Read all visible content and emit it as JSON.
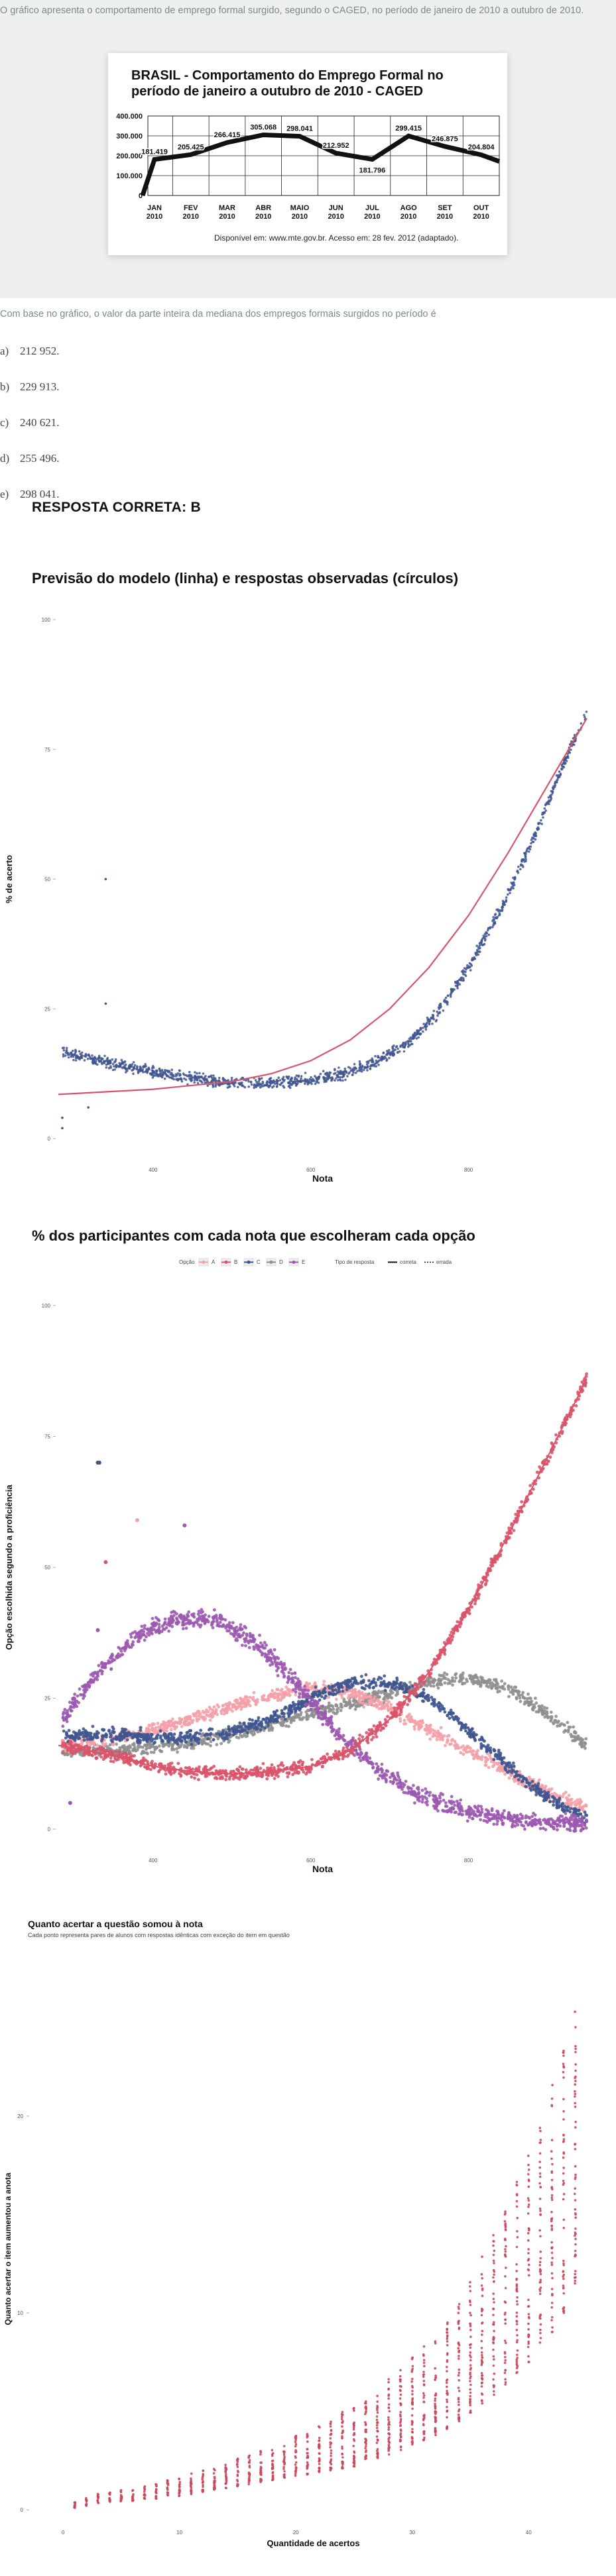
{
  "intro_text": "O gráfico apresenta o comportamento de emprego formal surgido, segundo o CAGED, no período de janeiro de 2010 a outubro de 2010.",
  "caged_chart": {
    "title_line1": "BRASIL - Comportamento do Emprego Formal no",
    "title_line2": "período de janeiro a outubro de 2010 - CAGED",
    "source": "Disponível em: www.mte.gov.br. Acesso em: 28 fev. 2012 (adaptado).",
    "y_ticks": [
      "400.000",
      "300.000",
      "200.000",
      "100.000",
      "0"
    ],
    "months": [
      "JAN",
      "FEV",
      "MAR",
      "ABR",
      "MAIO",
      "JUN",
      "JUL",
      "AGO",
      "SET",
      "OUT"
    ],
    "year": "2010",
    "value_labels": [
      "181.419",
      "205.425",
      "266.415",
      "305.068",
      "298.041",
      "212.952",
      "181.796",
      "299.415",
      "246.875",
      "204.804"
    ]
  },
  "chart_data": [
    {
      "type": "line",
      "title": "BRASIL - Comportamento do Emprego Formal no período de janeiro a outubro de 2010 - CAGED",
      "categories": [
        "JAN 2010",
        "FEV 2010",
        "MAR 2010",
        "ABR 2010",
        "MAIO 2010",
        "JUN 2010",
        "JUL 2010",
        "AGO 2010",
        "SET 2010",
        "OUT 2010"
      ],
      "values": [
        181419,
        205425,
        266415,
        305068,
        298041,
        212952,
        181796,
        299415,
        246875,
        204804
      ],
      "ylim": [
        0,
        400000
      ],
      "grid": true
    },
    {
      "type": "scatter",
      "title": "Previsão do modelo (linha) e respostas observadas (círculos)",
      "xlabel": "Nota",
      "ylabel": "% de acerto",
      "y_ticks": [
        "100",
        "75",
        "50",
        "25",
        "0"
      ],
      "x_ticks": [
        "400",
        "600",
        "800"
      ],
      "ylim": [
        0,
        100
      ],
      "xlim": [
        280,
        950
      ],
      "model_line": {
        "x": [
          280,
          400,
          500,
          550,
          600,
          650,
          700,
          750,
          800,
          850,
          900,
          950
        ],
        "y": [
          8.5,
          9.5,
          11,
          12.5,
          15,
          19,
          25,
          33,
          43,
          55,
          68,
          81
        ]
      },
      "observed_trend": {
        "x": [
          280,
          330,
          380,
          430,
          480,
          530,
          580,
          630,
          680,
          720,
          760,
          800,
          840,
          880,
          920,
          950
        ],
        "y": [
          17,
          15,
          13.5,
          12,
          11,
          10.5,
          11,
          12,
          14.5,
          18,
          24,
          33,
          44,
          57,
          72,
          82
        ]
      }
    },
    {
      "type": "scatter",
      "title": "% dos participantes com cada nota que escolheram cada opção",
      "xlabel": "Nota",
      "ylabel": "Opção escolhida segundo a proficiência",
      "y_ticks": [
        "100",
        "75",
        "50",
        "25",
        "0"
      ],
      "x_ticks": [
        "400",
        "600",
        "800"
      ],
      "ylim": [
        0,
        100
      ],
      "legend_position": "top",
      "legend_option_title": "Opção",
      "legend_type_title": "Tipo de resposta",
      "legend_type_items": [
        "correta",
        "errada"
      ],
      "series": [
        {
          "name": "A",
          "color": "#f4a0a8",
          "correct": false,
          "x": [
            280,
            350,
            400,
            450,
            500,
            550,
            600,
            650,
            700,
            750,
            800,
            850,
            900,
            950
          ],
          "y": [
            16,
            17,
            19,
            21,
            23.5,
            25.5,
            27,
            26,
            23,
            19,
            15,
            11,
            7,
            4
          ]
        },
        {
          "name": "B",
          "color": "#d9546a",
          "correct": true,
          "x": [
            280,
            350,
            400,
            450,
            500,
            550,
            600,
            650,
            700,
            750,
            800,
            850,
            900,
            950
          ],
          "y": [
            16,
            14,
            12,
            11,
            10.5,
            11,
            12,
            15,
            21,
            30,
            42,
            56,
            71,
            86
          ]
        },
        {
          "name": "C",
          "color": "#3f558f",
          "correct": false,
          "x": [
            280,
            350,
            400,
            450,
            500,
            550,
            600,
            650,
            700,
            750,
            800,
            850,
            900,
            950
          ],
          "y": [
            18,
            18,
            17.5,
            17.5,
            18.5,
            21,
            25,
            28,
            28,
            25,
            19,
            12,
            6,
            2
          ]
        },
        {
          "name": "D",
          "color": "#8f8f8f",
          "correct": false,
          "x": [
            280,
            350,
            400,
            450,
            500,
            550,
            600,
            650,
            700,
            750,
            800,
            850,
            900,
            950
          ],
          "y": [
            15,
            15,
            15.5,
            16.5,
            18,
            20,
            22,
            24,
            26,
            28,
            29,
            27,
            22,
            16
          ]
        },
        {
          "name": "E",
          "color": "#9b59b0",
          "correct": false,
          "x": [
            280,
            330,
            380,
            430,
            480,
            530,
            580,
            630,
            680,
            730,
            780,
            830,
            880,
            950
          ],
          "y": [
            20,
            30,
            37,
            40,
            40,
            36,
            28,
            19,
            12,
            7,
            4,
            2.5,
            1.5,
            1
          ]
        }
      ]
    },
    {
      "type": "scatter",
      "title": "Quanto acertar a questão somou à nota",
      "subtitle": "Cada ponto representa pares de alunos com respostas idênticas com exceção do item em questão",
      "xlabel": "Quantidade de acertos",
      "ylabel": "Quanto acertar o item aumentou a anota",
      "y_ticks": [
        "20",
        "10",
        "0"
      ],
      "x_ticks": [
        "0",
        "10",
        "20",
        "30",
        "40"
      ],
      "xlim": [
        -2,
        45
      ],
      "ylim": [
        -0.5,
        27
      ],
      "x": [
        1,
        2,
        3,
        4,
        5,
        6,
        7,
        8,
        9,
        10,
        11,
        12,
        13,
        14,
        15,
        16,
        17,
        18,
        19,
        20,
        21,
        22,
        23,
        24,
        25,
        26,
        27,
        28,
        29,
        30,
        31,
        32,
        33,
        34,
        35,
        36,
        37,
        38,
        39,
        40,
        41,
        42,
        43,
        44
      ],
      "y_min": [
        0.1,
        0.2,
        0.3,
        0.35,
        0.4,
        0.45,
        0.5,
        0.55,
        0.6,
        0.7,
        0.8,
        0.9,
        1.0,
        1.1,
        1.2,
        1.3,
        1.4,
        1.5,
        1.6,
        1.7,
        1.8,
        1.9,
        2.0,
        2.1,
        2.2,
        2.4,
        2.6,
        2.8,
        3.0,
        3.2,
        3.5,
        3.8,
        4.1,
        4.5,
        4.9,
        5.3,
        5.8,
        6.3,
        6.9,
        7.5,
        8.2,
        9.0,
        10.0,
        11.5
      ],
      "y_max": [
        0.4,
        0.6,
        0.8,
        0.9,
        1.0,
        1.1,
        1.2,
        1.3,
        1.5,
        1.7,
        1.9,
        2.0,
        2.2,
        2.4,
        2.6,
        2.8,
        3.0,
        3.2,
        3.5,
        3.8,
        4.0,
        4.3,
        4.6,
        5.0,
        5.4,
        5.8,
        6.2,
        6.7,
        7.2,
        7.8,
        8.4,
        9.1,
        9.9,
        10.8,
        11.8,
        12.9,
        14.1,
        15.4,
        16.8,
        18.3,
        19.9,
        21.6,
        23.4,
        25.5
      ]
    }
  ],
  "question_text": "Com base no gráfico, o valor da parte inteira da mediana dos empregos formais surgidos no período é",
  "options": [
    {
      "letter": "a)",
      "value": "212 952."
    },
    {
      "letter": "b)",
      "value": "229 913."
    },
    {
      "letter": "c)",
      "value": "240 621."
    },
    {
      "letter": "d)",
      "value": "255 496."
    },
    {
      "letter": "e)",
      "value": "298 041."
    }
  ],
  "answer_text": "RESPOSTA CORRETA: B",
  "section1_title": "Previsão do modelo (linha) e respostas observadas (círculos)",
  "section2_title": "% dos participantes com cada nota que escolheram cada opção",
  "section3_title": "Quanto acertar a questão somou à nota",
  "section3_subtitle": "Cada ponto representa pares de alunos com respostas idênticas com exceção do item em questão",
  "legend": {
    "option_title": "Opção",
    "type_title": "Tipo de resposta",
    "correct": "correta",
    "wrong": "errada",
    "letters": [
      "A",
      "B",
      "C",
      "D",
      "E"
    ]
  }
}
